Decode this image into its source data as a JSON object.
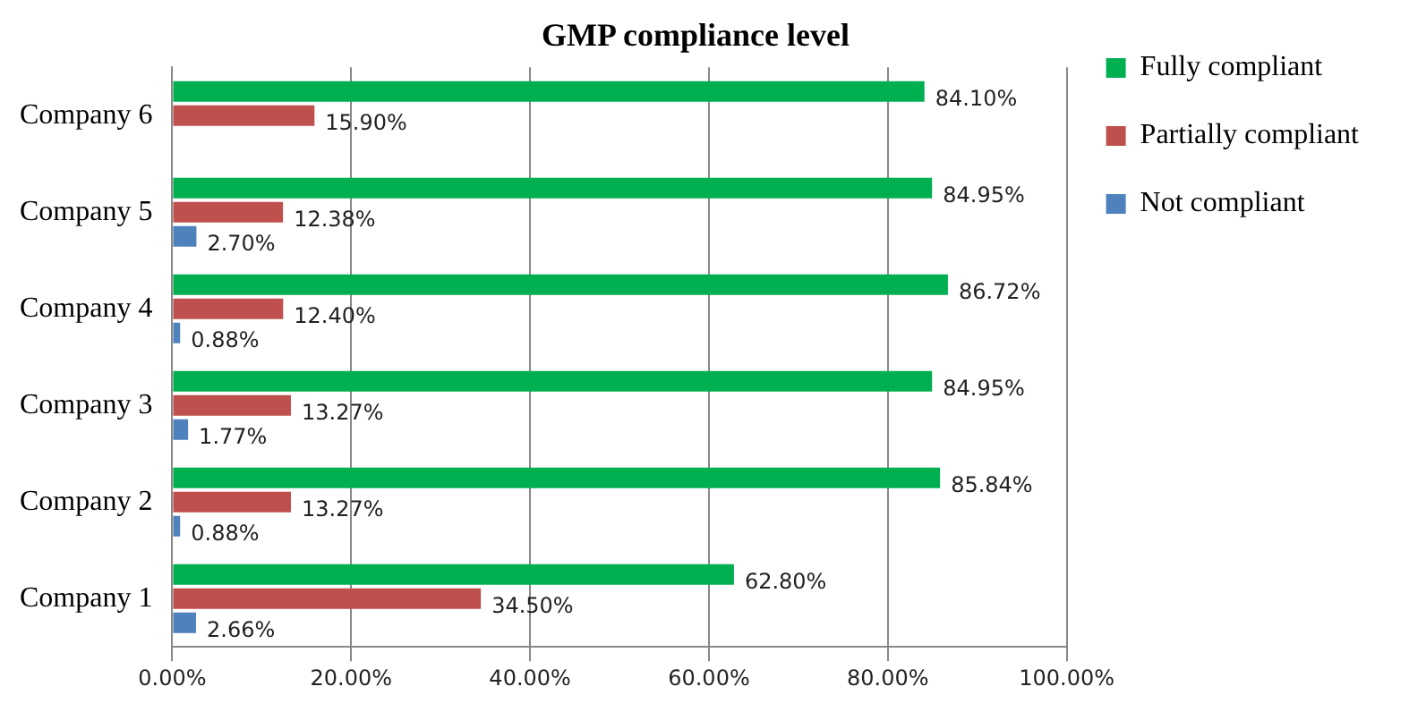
{
  "chart_data": {
    "type": "bar",
    "orientation": "horizontal",
    "title": "GMP compliance level",
    "categories": [
      "Company 6",
      "Company 5",
      "Company 4",
      "Company 3",
      "Company 2",
      "Company 1"
    ],
    "series": [
      {
        "name": "Fully compliant",
        "color": "#00b050",
        "values": [
          84.1,
          84.95,
          86.72,
          84.95,
          85.84,
          62.8
        ],
        "value_labels": [
          "84.10%",
          "84.95%",
          "86.72%",
          "84.95%",
          "85.84%",
          "62.80%"
        ]
      },
      {
        "name": "Partially compliant",
        "color": "#c0504d",
        "values": [
          15.9,
          12.38,
          12.4,
          13.27,
          13.27,
          34.5
        ],
        "value_labels": [
          "15.90%",
          "12.38%",
          "12.40%",
          "13.27%",
          "13.27%",
          "34.50%"
        ]
      },
      {
        "name": "Not compliant",
        "color": "#4f81bd",
        "values": [
          null,
          2.7,
          0.88,
          1.77,
          0.88,
          2.66
        ],
        "value_labels": [
          null,
          "2.70%",
          "0.88%",
          "1.77%",
          "0.88%",
          "2.66%"
        ]
      }
    ],
    "xlim": [
      0,
      100
    ],
    "xticks": [
      {
        "value": 0,
        "label": "0.00%"
      },
      {
        "value": 20,
        "label": "20.00%"
      },
      {
        "value": 40,
        "label": "40.00%"
      },
      {
        "value": 60,
        "label": "60.00%"
      },
      {
        "value": 80,
        "label": "80.00%"
      },
      {
        "value": 100,
        "label": "100.00%"
      }
    ],
    "grid": "x",
    "legend": "top right"
  }
}
